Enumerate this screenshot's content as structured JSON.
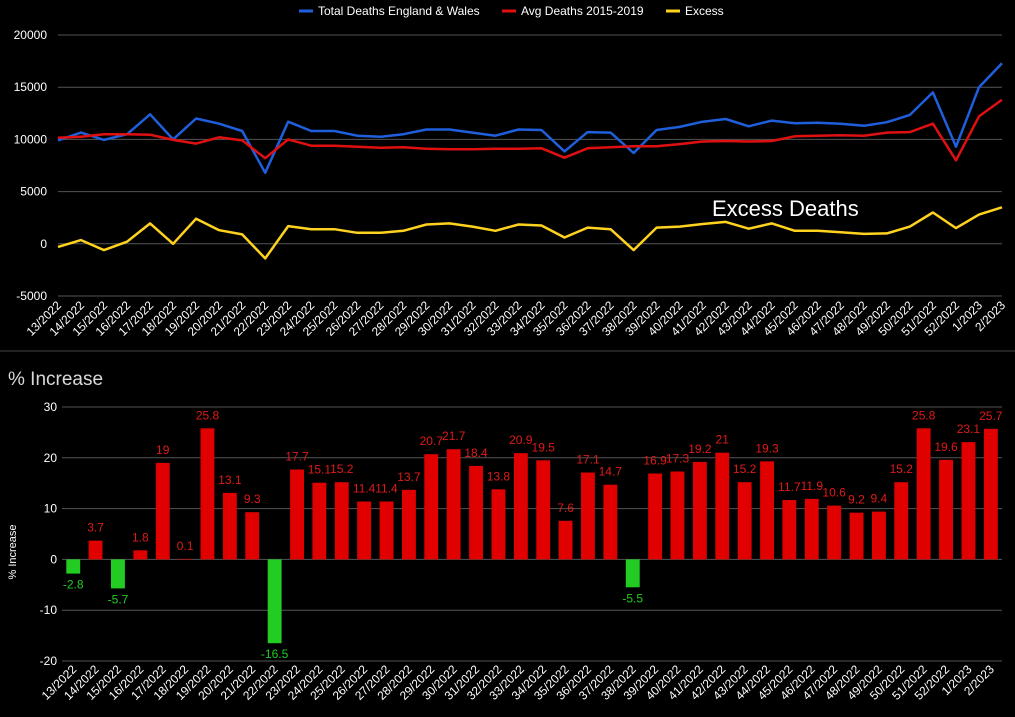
{
  "chart_data": [
    {
      "type": "line",
      "x": [
        "13/2022",
        "14/2022",
        "15/2022",
        "16/2022",
        "17/2022",
        "18/2022",
        "19/2022",
        "20/2022",
        "21/2022",
        "22/2022",
        "23/2022",
        "24/2022",
        "25/2022",
        "26/2022",
        "27/2022",
        "28/2022",
        "29/2022",
        "30/2022",
        "31/2022",
        "32/2022",
        "33/2022",
        "34/2022",
        "35/2022",
        "36/2022",
        "37/2022",
        "38/2022",
        "39/2022",
        "40/2022",
        "41/2022",
        "42/2022",
        "43/2022",
        "44/2022",
        "45/2022",
        "46/2022",
        "47/2022",
        "48/2022",
        "49/2022",
        "50/2022",
        "51/2022",
        "52/2022",
        "1/2023",
        "2/2023"
      ],
      "series": [
        {
          "name": "Total Deaths England & Wales",
          "color": "#1f5fdc",
          "values": [
            9900,
            10650,
            9950,
            10500,
            12400,
            10000,
            12000,
            11500,
            10800,
            6800,
            11700,
            10800,
            10800,
            10350,
            10250,
            10500,
            10950,
            10950,
            10650,
            10350,
            10950,
            10900,
            8850,
            10700,
            10650,
            8700,
            10900,
            11200,
            11700,
            11950,
            11250,
            11800,
            11550,
            11600,
            11500,
            11300,
            11650,
            12350,
            14500,
            9300,
            15000,
            17300
          ]
        },
        {
          "name": "Avg Deaths 2015-2019",
          "color": "#e01010",
          "values": [
            10150,
            10250,
            10500,
            10500,
            10450,
            9950,
            9600,
            10200,
            9900,
            8200,
            10000,
            9400,
            9400,
            9300,
            9200,
            9250,
            9100,
            9050,
            9050,
            9100,
            9100,
            9150,
            8250,
            9150,
            9250,
            9350,
            9350,
            9550,
            9800,
            9850,
            9800,
            9850,
            10300,
            10350,
            10400,
            10350,
            10650,
            10700,
            11500,
            8000,
            12200,
            13800
          ]
        },
        {
          "name": "Excess",
          "color": "#ffd21f",
          "values": [
            -300,
            350,
            -600,
            200,
            1950,
            0,
            2400,
            1300,
            900,
            -1400,
            1700,
            1400,
            1400,
            1050,
            1050,
            1250,
            1850,
            1950,
            1650,
            1250,
            1850,
            1750,
            600,
            1550,
            1400,
            -600,
            1550,
            1650,
            1900,
            2100,
            1450,
            1950,
            1250,
            1250,
            1100,
            950,
            1000,
            1650,
            3000,
            1500,
            2800,
            3500
          ]
        }
      ],
      "ylim": [
        -5000,
        20000
      ],
      "yticks": [
        "20000",
        "15000",
        "10000",
        "5000",
        "0",
        "-5000"
      ],
      "annotation": "Excess Deaths",
      "legend": "top",
      "grid": true
    },
    {
      "type": "bar",
      "title": "% Increase",
      "ylabel": "% Increase",
      "categories": [
        "13/2022",
        "14/2022",
        "15/2022",
        "16/2022",
        "17/2022",
        "18/2022",
        "19/2022",
        "20/2022",
        "21/2022",
        "22/2022",
        "23/2022",
        "24/2022",
        "25/2022",
        "26/2022",
        "27/2022",
        "28/2022",
        "29/2022",
        "30/2022",
        "31/2022",
        "32/2022",
        "33/2022",
        "34/2022",
        "35/2022",
        "36/2022",
        "37/2022",
        "38/2022",
        "39/2022",
        "40/2022",
        "41/2022",
        "42/2022",
        "43/2022",
        "44/2022",
        "45/2022",
        "46/2022",
        "47/2022",
        "48/2022",
        "49/2022",
        "50/2022",
        "51/2022",
        "52/2022",
        "1/2023",
        "2/2023"
      ],
      "values": [
        -2.8,
        3.7,
        -5.7,
        1.8,
        19,
        0.1,
        25.8,
        13.1,
        9.3,
        -16.5,
        17.7,
        15.1,
        15.2,
        11.4,
        11.4,
        13.7,
        20.7,
        21.7,
        18.4,
        13.8,
        20.9,
        19.5,
        7.6,
        17.1,
        14.7,
        -5.5,
        16.9,
        17.3,
        19.2,
        21,
        15.2,
        19.3,
        11.7,
        11.9,
        10.6,
        9.2,
        9.4,
        15.2,
        25.8,
        19.6,
        23.1,
        25.7
      ],
      "labels": [
        "-2.8",
        "3.7",
        "-5.7",
        "1.8",
        "19",
        "0.1",
        "25.8",
        "13.1",
        "9.3",
        "-16.5",
        "17.7",
        "15.1",
        "15.2",
        "11.4",
        "11.4",
        "13.7",
        "20.7",
        "21.7",
        "18.4",
        "13.8",
        "20.9",
        "19.5",
        "7.6",
        "17.1",
        "14.7",
        "-5.5",
        "16.9",
        "17.3",
        "19.2",
        "21",
        "15.2",
        "19.3",
        "11.7",
        "11.9",
        "10.6",
        "9.2",
        "9.4",
        "15.2",
        "25.8",
        "19.6",
        "23.1",
        "25.7"
      ],
      "positive_color": "#e00000",
      "negative_color": "#22cc22",
      "positive_label_color": "#e01a1a",
      "negative_label_color": "#22cc22",
      "ylim": [
        -20,
        30
      ],
      "yticks": [
        "30",
        "20",
        "10",
        "0",
        "-10",
        "-20"
      ],
      "grid": true
    }
  ]
}
